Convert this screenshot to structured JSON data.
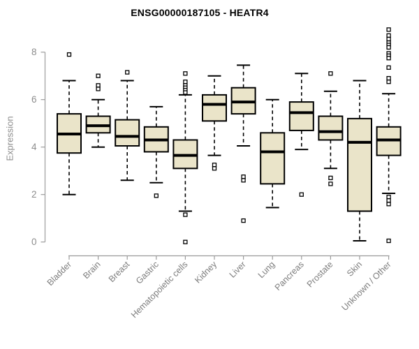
{
  "chart_data": {
    "type": "boxplot",
    "title": "ENSG00000187105 - HEATR4",
    "ylabel": "Expression",
    "xlabel": "",
    "yticks": [
      0,
      2,
      4,
      6,
      8
    ],
    "ylim": [
      0,
      9
    ],
    "grid": false,
    "legend": "none",
    "categories": [
      "Bladder",
      "Brain",
      "Breast",
      "Gastric",
      "Hematopoietic cells",
      "Kidney",
      "Liver",
      "Lung",
      "Pancreas",
      "Prostate",
      "Skin",
      "Unknown / Other"
    ],
    "series": [
      {
        "category": "Bladder",
        "whisker_low": 2.0,
        "q1": 3.75,
        "median": 4.55,
        "q3": 5.4,
        "whisker_high": 6.8,
        "outliers": [
          7.9
        ]
      },
      {
        "category": "Brain",
        "whisker_low": 4.0,
        "q1": 4.6,
        "median": 4.9,
        "q3": 5.3,
        "whisker_high": 6.0,
        "outliers": [
          7.0,
          6.6,
          6.45
        ]
      },
      {
        "category": "Breast",
        "whisker_low": 2.6,
        "q1": 4.05,
        "median": 4.45,
        "q3": 5.15,
        "whisker_high": 6.8,
        "outliers": [
          7.15
        ]
      },
      {
        "category": "Gastric",
        "whisker_low": 2.5,
        "q1": 3.8,
        "median": 4.3,
        "q3": 4.85,
        "whisker_high": 5.7,
        "outliers": [
          1.95
        ]
      },
      {
        "category": "Hematopoietic cells",
        "whisker_low": 1.3,
        "q1": 3.1,
        "median": 3.65,
        "q3": 4.3,
        "whisker_high": 6.2,
        "outliers": [
          7.1,
          6.75,
          6.6,
          6.5,
          6.4,
          6.3,
          1.15,
          0.0
        ]
      },
      {
        "category": "Kidney",
        "whisker_low": 3.65,
        "q1": 5.1,
        "median": 5.8,
        "q3": 6.2,
        "whisker_high": 7.0,
        "outliers": [
          3.25,
          3.1
        ]
      },
      {
        "category": "Liver",
        "whisker_low": 4.05,
        "q1": 5.4,
        "median": 5.9,
        "q3": 6.5,
        "whisker_high": 7.45,
        "outliers": [
          2.75,
          2.6,
          0.9
        ]
      },
      {
        "category": "Lung",
        "whisker_low": 1.45,
        "q1": 2.45,
        "median": 3.8,
        "q3": 4.6,
        "whisker_high": 6.0,
        "outliers": []
      },
      {
        "category": "Pancreas",
        "whisker_low": 3.9,
        "q1": 4.7,
        "median": 5.45,
        "q3": 5.9,
        "whisker_high": 7.1,
        "outliers": [
          2.0
        ]
      },
      {
        "category": "Prostate",
        "whisker_low": 3.1,
        "q1": 4.3,
        "median": 4.65,
        "q3": 5.3,
        "whisker_high": 6.35,
        "outliers": [
          7.1,
          2.7,
          2.45
        ]
      },
      {
        "category": "Skin",
        "whisker_low": 0.05,
        "q1": 1.3,
        "median": 4.2,
        "q3": 5.2,
        "whisker_high": 6.8,
        "outliers": []
      },
      {
        "category": "Unknown / Other",
        "whisker_low": 2.05,
        "q1": 3.65,
        "median": 4.3,
        "q3": 4.85,
        "whisker_high": 6.25,
        "outliers": [
          8.95,
          8.7,
          8.55,
          8.4,
          8.3,
          8.2,
          7.95,
          7.85,
          7.75,
          7.35,
          6.9,
          6.75,
          1.9,
          1.75,
          1.6,
          0.05
        ]
      }
    ],
    "colors": {
      "box_fill": "#eae4c9",
      "box_stroke": "#000000",
      "median": "#000000",
      "whisker": "#000000",
      "outlier_stroke": "#000000",
      "outlier_fill": "#ffffff",
      "axis": "#9b9b9b",
      "tick_label": "#8c8c8c",
      "category_label": "#7d7d7d",
      "title": "#000000",
      "background": "#ffffff"
    }
  }
}
